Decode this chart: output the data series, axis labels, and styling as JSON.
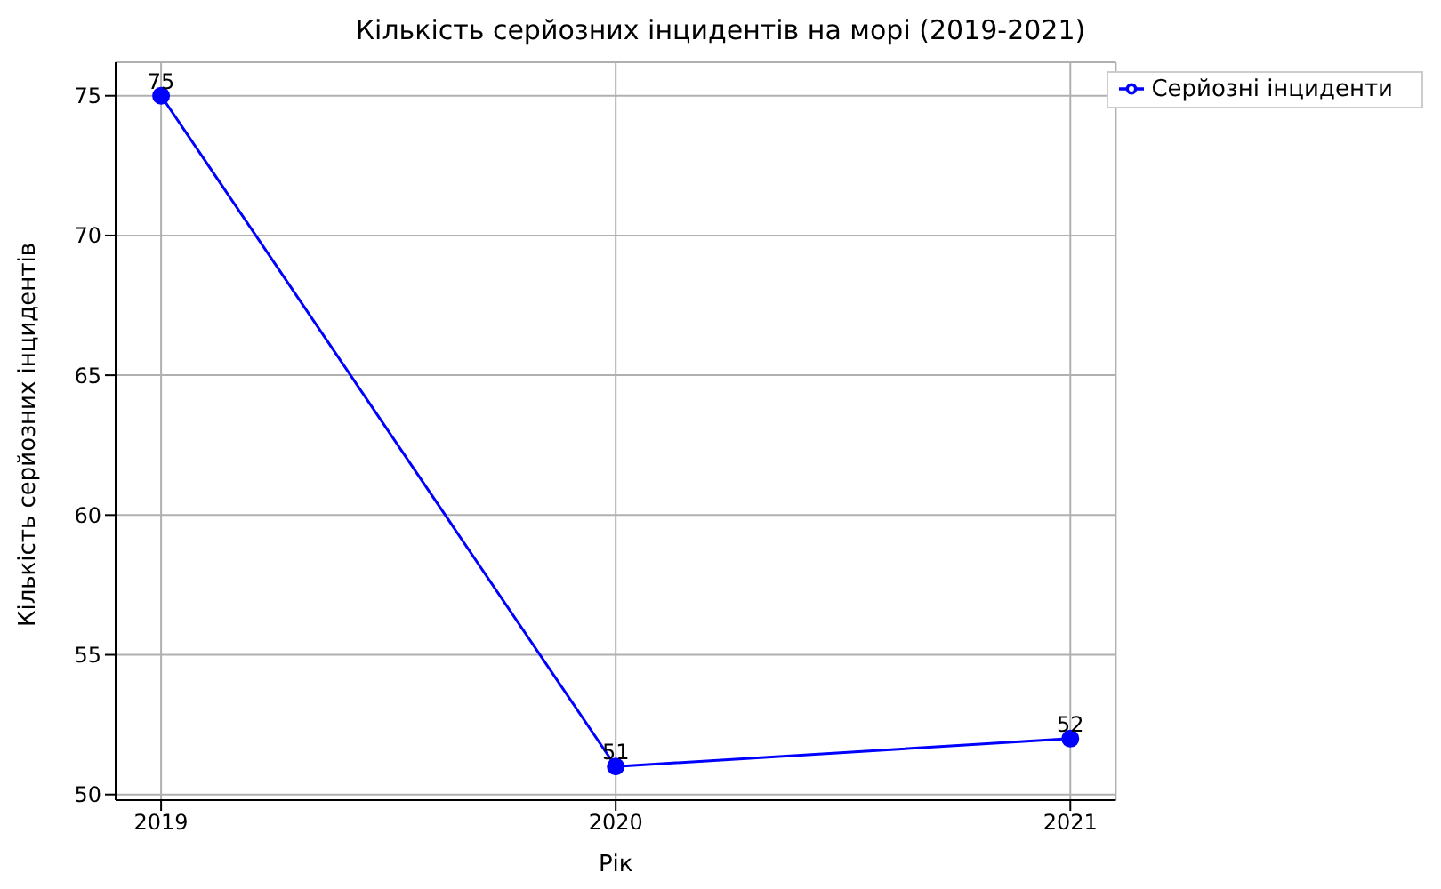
{
  "chart_data": {
    "type": "line",
    "title": "Кількість серйозних інцидентів на морі (2019-2021)",
    "xlabel": "Рік",
    "ylabel": "Кількість серйозних інцидентів",
    "x": [
      2019,
      2020,
      2021
    ],
    "series": [
      {
        "name": "Серйозні інциденти",
        "color": "#0000ff",
        "values": [
          75,
          51,
          52
        ]
      }
    ],
    "xlim": [
      2018.9,
      2021.1
    ],
    "xticks": [
      2019,
      2020,
      2021
    ],
    "ylim": [
      49.8,
      76.2
    ],
    "yticks": [
      50,
      55,
      60,
      65,
      70,
      75
    ],
    "grid": true,
    "legend": "top right",
    "marker": "circle",
    "line_style": "solid",
    "data_labels": true
  }
}
